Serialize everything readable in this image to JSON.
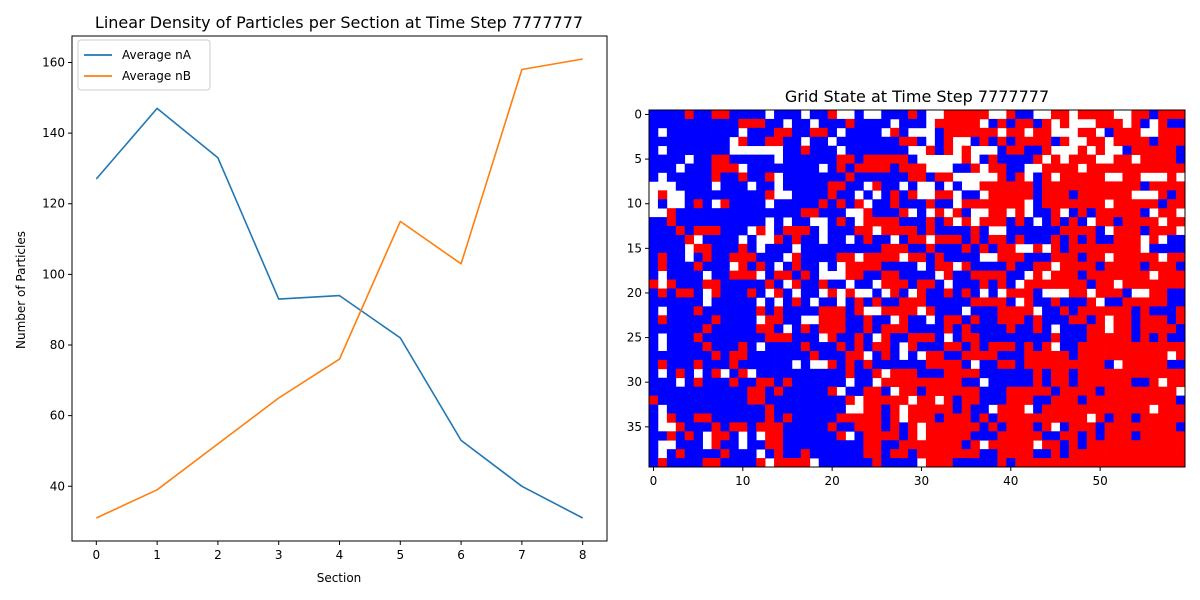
{
  "colors": {
    "series_a": "#1f77b4",
    "series_b": "#ff7f0e",
    "grid_empty": "#ffffff",
    "grid_a": "#0000ff",
    "grid_b": "#ff0000"
  },
  "chart_data": [
    {
      "type": "line",
      "title": "Linear Density of Particles per Section at Time Step 7777777",
      "xlabel": "Section",
      "ylabel": "Number of Particles",
      "x": [
        0,
        1,
        2,
        3,
        4,
        5,
        6,
        7,
        8
      ],
      "xlim": [
        -0.4,
        8.4
      ],
      "ylim": [
        24.5,
        167.5
      ],
      "xticks": [
        0,
        1,
        2,
        3,
        4,
        5,
        6,
        7,
        8
      ],
      "yticks": [
        40,
        60,
        80,
        100,
        120,
        140,
        160
      ],
      "grid": false,
      "legend": "top-left",
      "series": [
        {
          "name": "Average nA",
          "color": "#1f77b4",
          "values": [
            127,
            147,
            133,
            93,
            94,
            82,
            53,
            40,
            31
          ]
        },
        {
          "name": "Average nB",
          "color": "#ff7f0e",
          "values": [
            31,
            39,
            52,
            65,
            76,
            115,
            103,
            158,
            161
          ]
        }
      ]
    },
    {
      "type": "heatmap",
      "title": "Grid State at Time Step 7777777",
      "rows": 40,
      "cols": 60,
      "xticks": [
        0,
        10,
        20,
        30,
        40,
        50
      ],
      "yticks": [
        0,
        5,
        10,
        15,
        20,
        25,
        30,
        35
      ],
      "cell_values": "0 = empty (white), 1 = species A (blue), 2 = species B (red)",
      "grid_rows": [
        "111121122111101110112001001112100222220021100220222200221222",
        "111111111122211011011121111011102222201212212020002220210211",
        "101111111101112211221011110210001222222022022000220122200222",
        "111111111021122110110111111122101200121212222120022022221222",
        "101111111000000112111011111110021202000122112000202001222221",
        "111101122111110111111221222221000002012111120202220022022221",
        "111011122201111111101212222122200011202211002222022222222222",
        "101111121121120111111121111112212200000212012022222002200020",
        "000111101110110111112211021101001010022222212222222222212222",
        "020011111111120011112110101212002201102222212221222222000212",
        "010012102111101111121212011211121102222222012222222022222122",
        "002111111111111112211100211120102021002202011201212222210220",
        "112111111111101011001210222211121202022212101212102212222022",
        "111212221110201222101112202222121111210011111122221022212220",
        "111120111101002121101101211012202221212212111212121122202011",
        "111102211121011101111111112221121112121220020212222222201111",
        "121101211222111021111220222202212111100222111222122022222022",
        "121112111021210121101022221111012202111121122022221222212221",
        "101111011222012212100022112211110211222211020222122222220222",
        "202111221111121021121101102221221011121210222222212202222222",
        "121221021112102101102020010210211212101022210002202221002211",
        "111111011111010121011012121122211111222210211211120112222211",
        "101112111111212111122212002222021110111222201121222222121112",
        "121111121111022110022211211021101221211222121112212022122212",
        "111111211111221012122211212221111212111121121011122022122221",
        "101112111111122211102112102112221012211111111211122222121211",
        "101111211121011112111212122102111221212221212011222222222222",
        "111111121221111111211122012101022112222111222221222222222202",
        "121112111211111101002121211111122221011221222222222102222211",
        "101210120120111111111121120222111222211111121221222222222222",
        "111012111211221211111101102222222221101111121221222222112022",
        "111111111112212111112011221022122222211122222122221222222220",
        "211111111112211111111120222220220212211122211222122222222221",
        "101111111111121111111100221202222212110222012222222222220222",
        "102112211111121211111222221202221222121222222222202122122222",
        "100211121221222111112112221212022222212122212012221222222221",
        "112121022101022111111201222212022222111222221122121222122222",
        "100111021101122111111111221122222221202222202212122222222222",
        "101211112111012112111111221221222222211222211212222222222222",
        "121111221111202222011111121111022211111212222222222222222222"
      ]
    }
  ]
}
